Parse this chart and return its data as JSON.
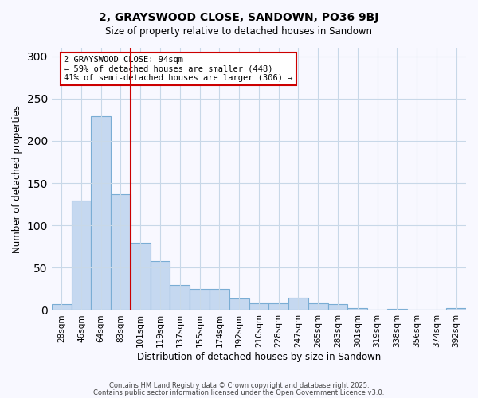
{
  "title": "2, GRAYSWOOD CLOSE, SANDOWN, PO36 9BJ",
  "subtitle": "Size of property relative to detached houses in Sandown",
  "xlabel": "Distribution of detached houses by size in Sandown",
  "ylabel": "Number of detached properties",
  "bar_labels": [
    "28sqm",
    "46sqm",
    "64sqm",
    "83sqm",
    "101sqm",
    "119sqm",
    "137sqm",
    "155sqm",
    "174sqm",
    "192sqm",
    "210sqm",
    "228sqm",
    "247sqm",
    "265sqm",
    "283sqm",
    "301sqm",
    "319sqm",
    "338sqm",
    "356sqm",
    "374sqm",
    "392sqm"
  ],
  "bar_values": [
    7,
    129,
    229,
    137,
    79,
    58,
    30,
    25,
    25,
    14,
    8,
    8,
    15,
    8,
    7,
    2,
    0,
    1,
    0,
    0,
    2
  ],
  "bar_color": "#c5d8f0",
  "bar_edge_color": "#7aadd4",
  "vline_x": 3.5,
  "annotation_box_text": "2 GRAYSWOOD CLOSE: 94sqm\n← 59% of detached houses are smaller (448)\n41% of semi-detached houses are larger (306) →",
  "vline_color": "#cc0000",
  "ylim": [
    0,
    310
  ],
  "yticks": [
    0,
    50,
    100,
    150,
    200,
    250,
    300
  ],
  "footer1": "Contains HM Land Registry data © Crown copyright and database right 2025.",
  "footer2": "Contains public sector information licensed under the Open Government Licence v3.0.",
  "background_color": "#f8f8ff",
  "grid_color": "#c8d8e8"
}
